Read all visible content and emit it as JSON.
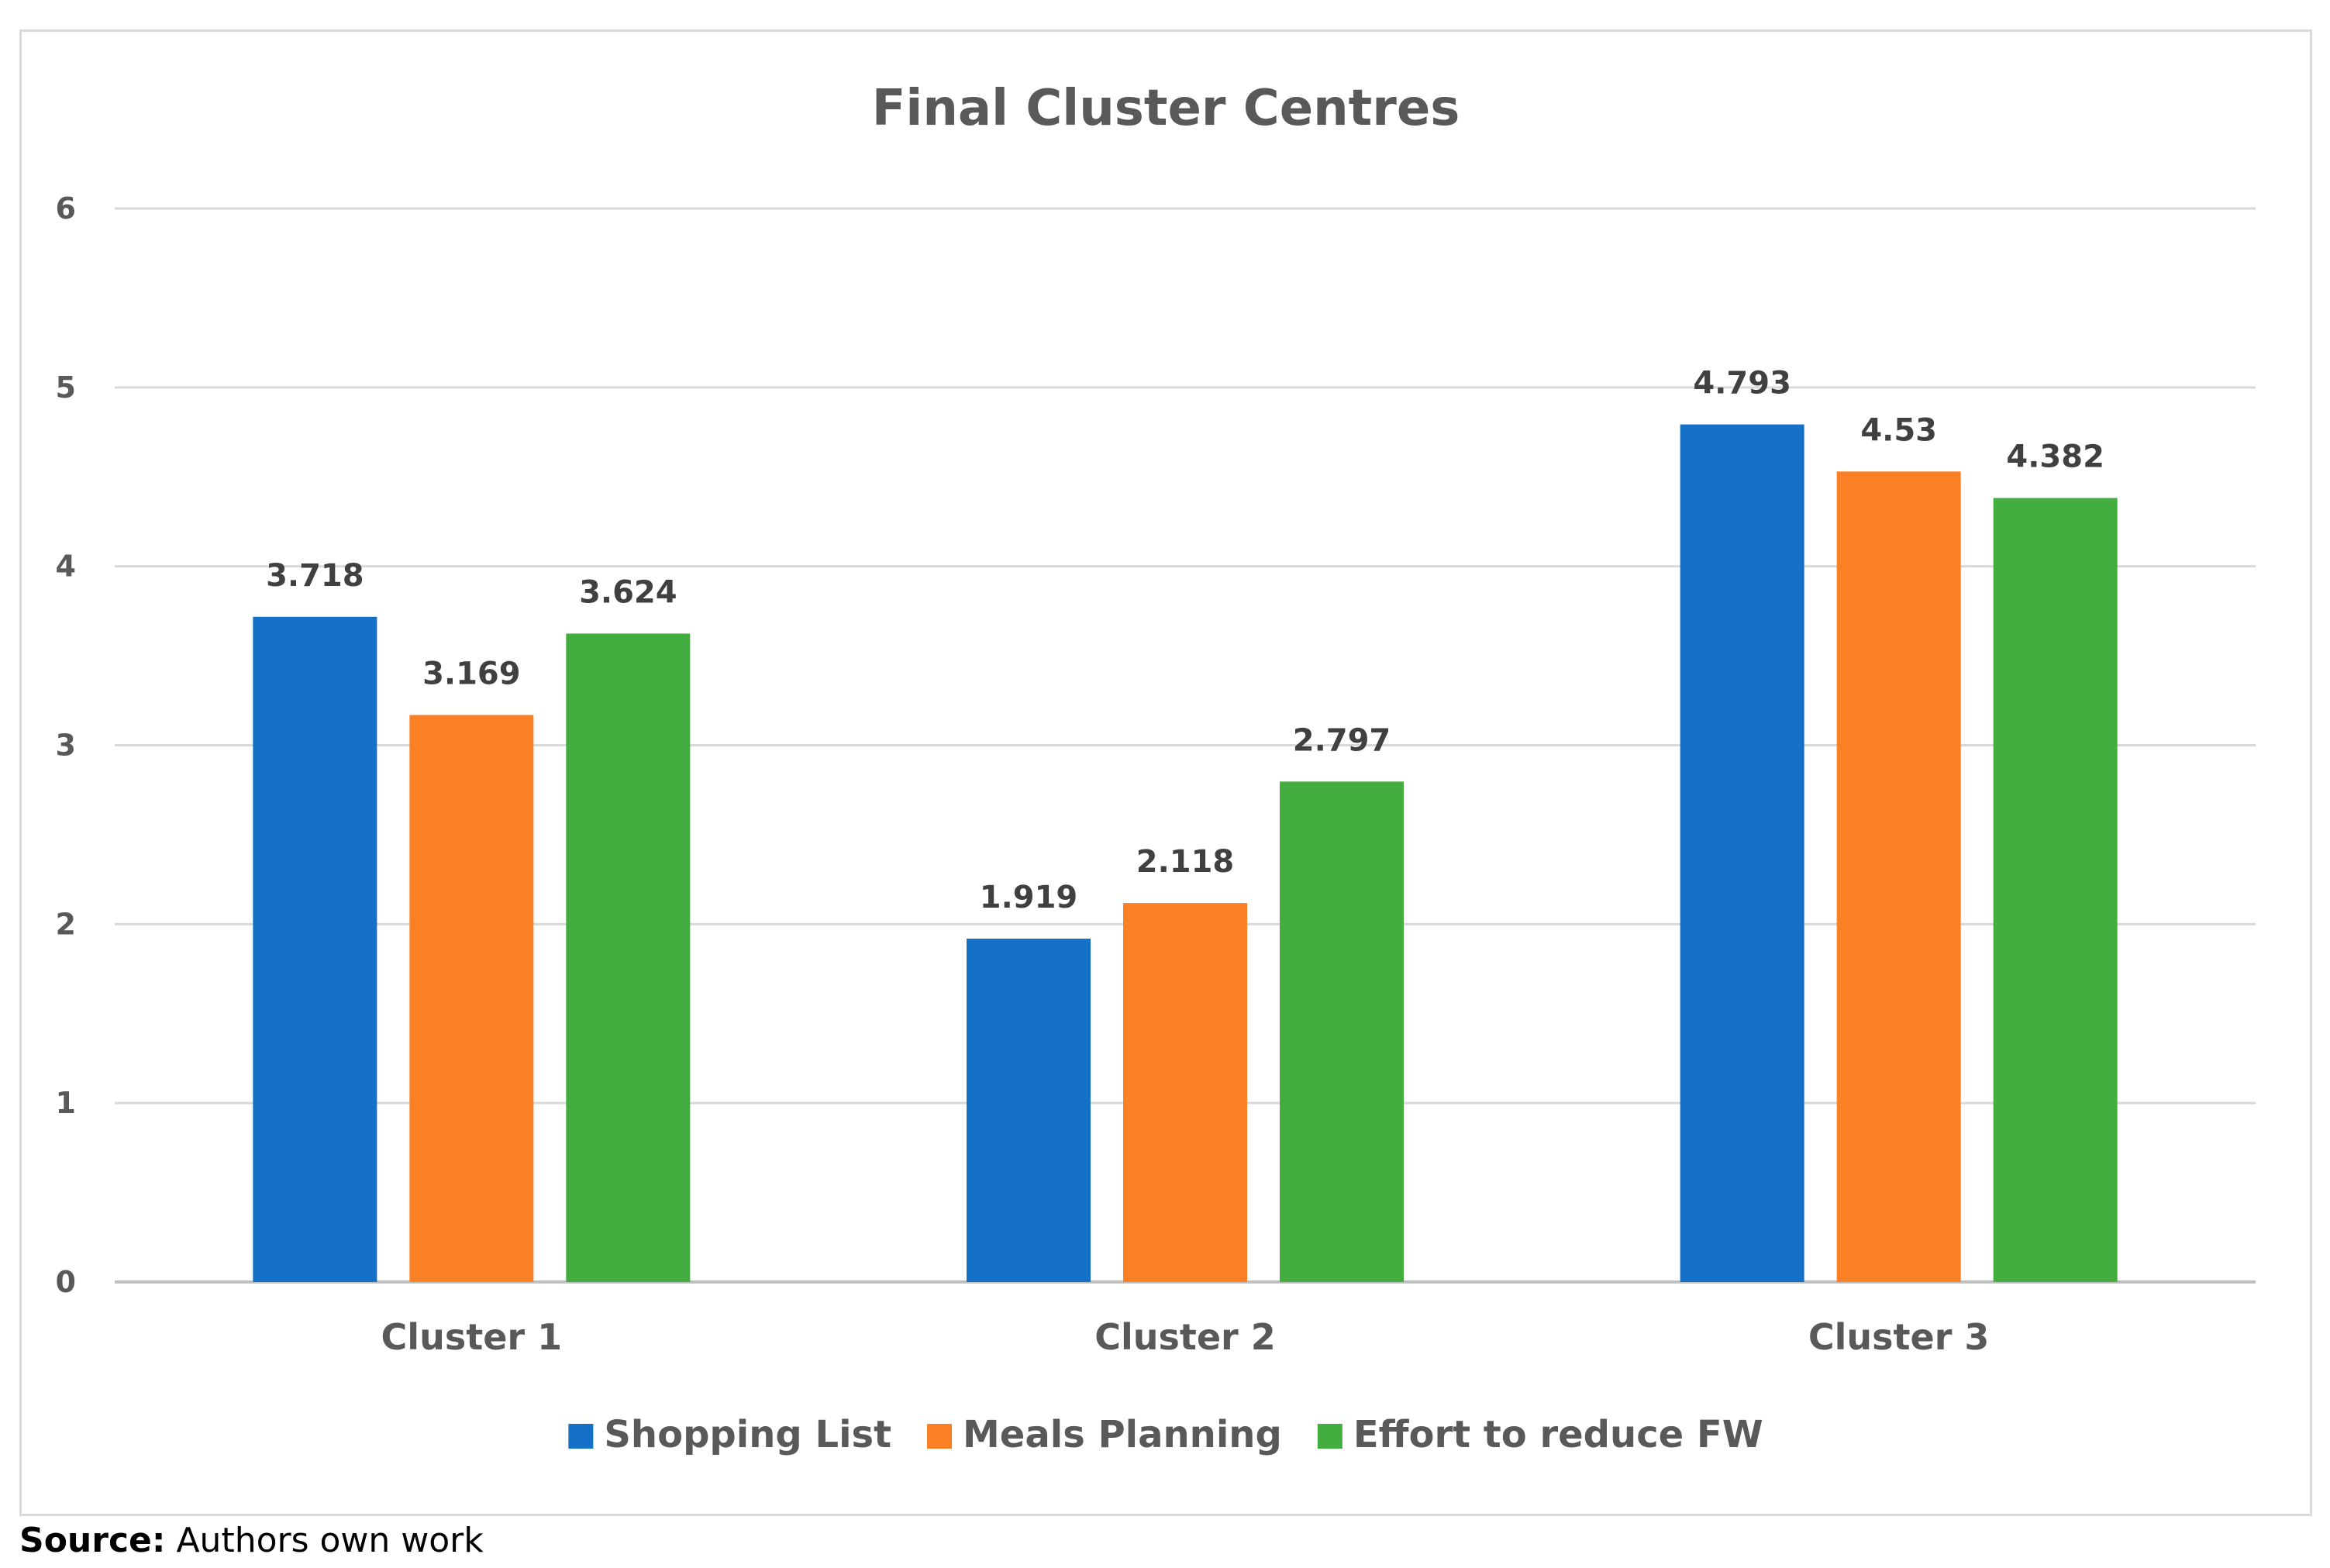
{
  "chart_data": {
    "type": "bar",
    "title": "Final Cluster Centres",
    "categories": [
      "Cluster 1",
      "Cluster 2",
      "Cluster 3"
    ],
    "series": [
      {
        "name": "Shopping List",
        "color": "#1570c8",
        "values": [
          3.718,
          1.919,
          4.793
        ],
        "labels": [
          "3.718",
          "1.919",
          "4.793"
        ]
      },
      {
        "name": "Meals Planning",
        "color": "#fa8026",
        "values": [
          3.169,
          2.118,
          4.53
        ],
        "labels": [
          "3.169",
          "2.118",
          "4.53"
        ]
      },
      {
        "name": "Effort to reduce FW",
        "color": "#44ad3f",
        "values": [
          3.624,
          2.797,
          4.382
        ],
        "labels": [
          "3.624",
          "2.797",
          "4.382"
        ]
      }
    ],
    "ylim": [
      0,
      6
    ],
    "yticks": [
      "0",
      "1",
      "2",
      "3",
      "4",
      "5",
      "6"
    ],
    "grid": true,
    "legend": "bottom"
  },
  "source": {
    "label": "Source:",
    "text": " Authors own work"
  }
}
